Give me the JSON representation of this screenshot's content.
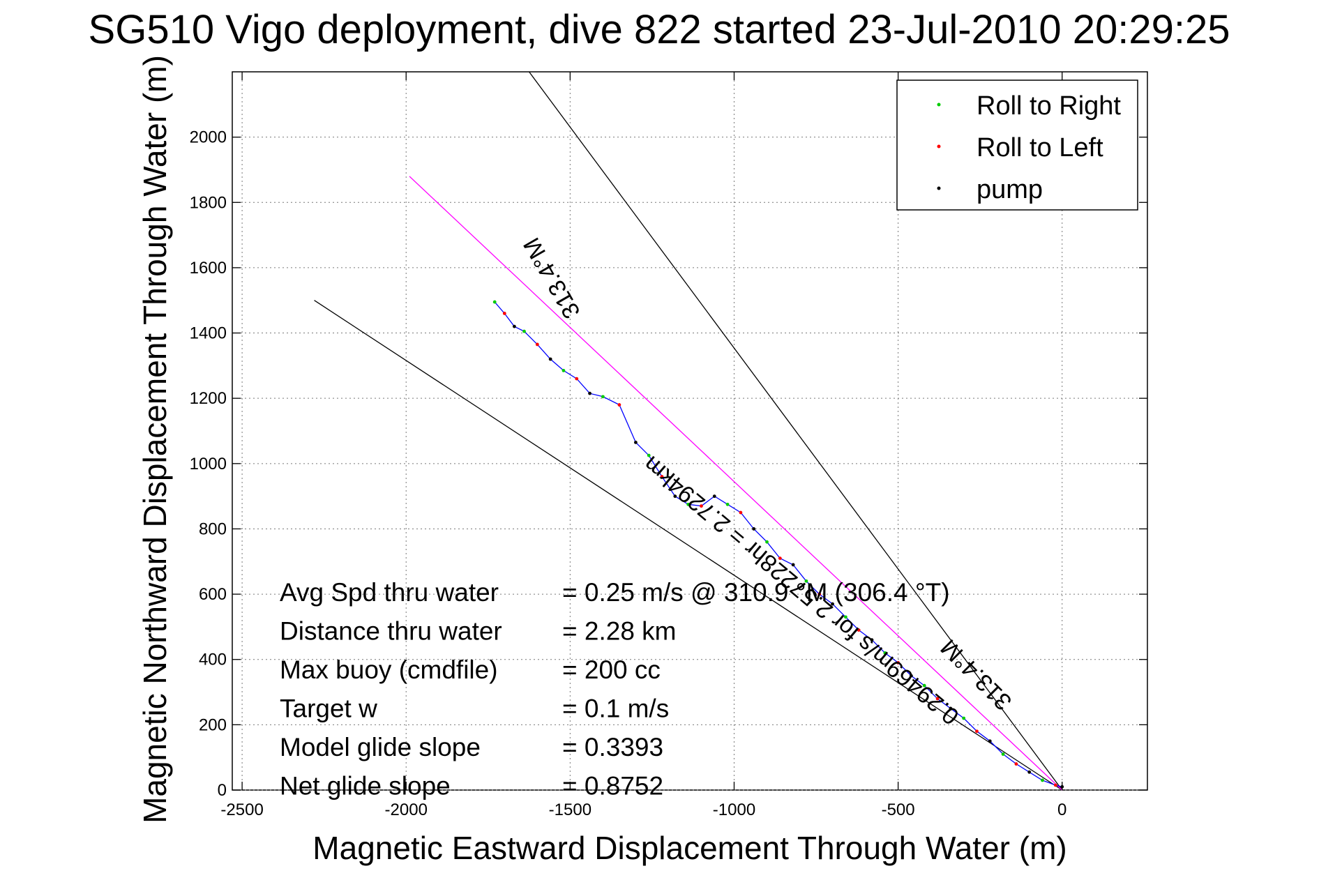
{
  "chart_data": {
    "type": "line",
    "title": "SG510 Vigo deployment, dive 822 started 23-Jul-2010 20:29:25",
    "xlabel": "Magnetic Eastward Displacement Through Water (m)",
    "ylabel": "Magnetic Northward Displacement Through Water (m)",
    "xlim": [
      -2530,
      260
    ],
    "ylim": [
      0,
      2200
    ],
    "xticks": [
      -2500,
      -2000,
      -1500,
      -1000,
      -500,
      0
    ],
    "yticks": [
      0,
      200,
      400,
      600,
      800,
      1000,
      1200,
      1400,
      1600,
      1800,
      2000
    ],
    "xtick_labels": [
      "-2500",
      "-2000",
      "-1500",
      "-1000",
      "-500",
      "0"
    ],
    "ytick_labels": [
      "0",
      "200",
      "400",
      "600",
      "800",
      "1000",
      "1200",
      "1400",
      "1600",
      "1800",
      "2000"
    ],
    "grid": true,
    "legend_position": "top-right",
    "legend": [
      {
        "label": "Roll to Right",
        "color": "#00cc00"
      },
      {
        "label": "Roll to Left",
        "color": "#ff0000"
      },
      {
        "label": "pump",
        "color": "#000000"
      }
    ],
    "track": {
      "color": "#0000ff",
      "x": [
        -1730,
        -1700,
        -1670,
        -1640,
        -1600,
        -1560,
        -1520,
        -1480,
        -1440,
        -1400,
        -1350,
        -1300,
        -1260,
        -1220,
        -1180,
        -1140,
        -1100,
        -1060,
        -1020,
        -980,
        -940,
        -900,
        -860,
        -820,
        -780,
        -740,
        -700,
        -660,
        -620,
        -580,
        -540,
        -500,
        -460,
        -420,
        -380,
        -340,
        -300,
        -260,
        -220,
        -180,
        -140,
        -100,
        -60,
        -20,
        0
      ],
      "y": [
        1495,
        1460,
        1420,
        1405,
        1365,
        1320,
        1285,
        1260,
        1215,
        1205,
        1180,
        1065,
        1025,
        960,
        900,
        875,
        870,
        900,
        875,
        850,
        800,
        760,
        710,
        690,
        640,
        600,
        570,
        530,
        490,
        460,
        420,
        390,
        350,
        320,
        280,
        250,
        220,
        180,
        150,
        110,
        80,
        55,
        30,
        15,
        10
      ]
    },
    "reference_lines": [
      {
        "color": "#000000",
        "x": [
          0,
          -1625
        ],
        "y": [
          0,
          2200
        ]
      },
      {
        "color": "#000000",
        "x": [
          0,
          -2280
        ],
        "y": [
          0,
          1500
        ]
      },
      {
        "color": "#ff00ff",
        "x": [
          0,
          -1990
        ],
        "y": [
          0,
          1880
        ]
      }
    ],
    "line_annotations": [
      {
        "text": "313.4°M",
        "x": -1535,
        "y": 1580
      },
      {
        "text": "0.29469m/s for 2.57228hr = 2.7294km",
        "x": -780,
        "y": 630
      },
      {
        "text": "313.4°M",
        "x": -245,
        "y": 370
      }
    ],
    "stats": [
      {
        "label": "Avg Spd thru water",
        "value": "=  0.25 m/s @ 310.9 °M (306.4 °T)"
      },
      {
        "label": "Distance thru water",
        "value": "=  2.28 km"
      },
      {
        "label": "Max buoy (cmdfile)",
        "value": "= 200 cc"
      },
      {
        "label": "Target w",
        "value": "= 0.1 m/s"
      },
      {
        "label": "Model glide slope",
        "value": "= 0.3393"
      },
      {
        "label": "Net glide slope",
        "value": "= 0.8752"
      }
    ]
  }
}
